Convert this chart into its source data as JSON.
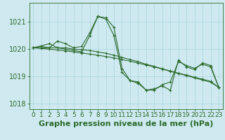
{
  "title": "Graphe pression niveau de la mer (hPa)",
  "bg_color": "#ceeaf0",
  "line_color": "#2d6a2d",
  "marker_color": "#2d6a2d",
  "xlim": [
    -0.5,
    23.5
  ],
  "ylim": [
    1017.8,
    1021.7
  ],
  "yticks": [
    1018,
    1019,
    1020,
    1021
  ],
  "xticks": [
    0,
    1,
    2,
    3,
    4,
    5,
    6,
    7,
    8,
    9,
    10,
    11,
    12,
    13,
    14,
    15,
    16,
    17,
    18,
    19,
    20,
    21,
    22,
    23
  ],
  "series": [
    {
      "x": [
        0,
        1,
        2,
        3,
        4,
        5,
        6,
        7,
        8,
        9,
        10,
        11,
        12,
        13,
        14,
        15,
        16,
        17,
        18,
        19,
        20,
        21,
        22,
        23
      ],
      "y": [
        1020.05,
        1020.1,
        1020.05,
        1020.3,
        1020.2,
        1020.05,
        1020.1,
        1020.6,
        1021.2,
        1021.15,
        1020.8,
        1019.3,
        1018.85,
        1018.8,
        1018.5,
        1018.55,
        1018.65,
        1018.5,
        1019.6,
        1019.35,
        1019.25,
        1019.5,
        1019.4,
        1018.6
      ]
    },
    {
      "x": [
        0,
        1,
        2,
        3,
        4,
        5,
        6,
        7,
        8,
        9,
        10,
        11,
        12,
        13,
        14,
        15,
        16,
        17,
        18,
        19,
        20,
        21,
        22,
        23
      ],
      "y": [
        1020.05,
        1020.05,
        1020.05,
        1020.05,
        1020.05,
        1020.0,
        1019.98,
        1019.95,
        1019.9,
        1019.85,
        1019.78,
        1019.7,
        1019.62,
        1019.54,
        1019.45,
        1019.37,
        1019.28,
        1019.2,
        1019.12,
        1019.05,
        1018.97,
        1018.9,
        1018.82,
        1018.6
      ]
    },
    {
      "x": [
        0,
        1,
        2,
        3,
        4,
        5,
        6,
        7,
        8,
        9,
        10,
        11,
        12,
        13,
        14,
        15,
        16,
        17,
        18,
        19,
        20,
        21,
        22,
        23
      ],
      "y": [
        1020.05,
        1020.03,
        1020.0,
        1019.97,
        1019.94,
        1019.9,
        1019.86,
        1019.82,
        1019.78,
        1019.73,
        1019.68,
        1019.62,
        1019.56,
        1019.49,
        1019.42,
        1019.35,
        1019.27,
        1019.19,
        1019.11,
        1019.03,
        1018.95,
        1018.87,
        1018.79,
        1018.6
      ]
    },
    {
      "x": [
        0,
        2,
        3,
        4,
        5,
        6,
        7,
        8,
        9,
        10,
        11,
        12,
        13,
        14,
        15,
        16,
        17,
        18,
        19,
        20,
        21,
        22,
        23
      ],
      "y": [
        1020.05,
        1020.2,
        1020.05,
        1020.0,
        1019.95,
        1019.9,
        1020.5,
        1021.2,
        1021.1,
        1020.5,
        1019.15,
        1018.85,
        1018.75,
        1018.5,
        1018.5,
        1018.7,
        1018.8,
        1019.55,
        1019.4,
        1019.3,
        1019.45,
        1019.35,
        1018.6
      ]
    }
  ],
  "grid_color": "#aad4de",
  "tick_color": "#2d6a2d",
  "label_color": "#2d6a2d",
  "tick_fontsize": 6.5,
  "title_fontsize": 8,
  "marker_size": 2.5,
  "line_width": 0.8
}
